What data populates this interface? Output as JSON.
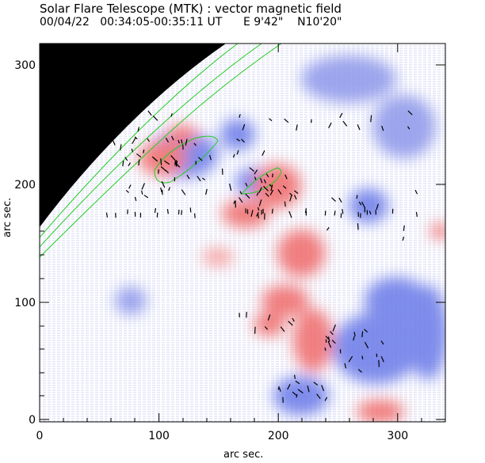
{
  "figure": {
    "title": "Solar Flare Telescope (MTK) : vector magnetic field",
    "subtitle": "00/04/22   00:34:05-00:35:11 UT      E 9'42\"    N10'20\"",
    "xlabel": "arc sec.",
    "ylabel": "arc sec.",
    "x_ticks": [
      "0",
      "100",
      "200",
      "300"
    ],
    "y_ticks": [
      "0",
      "100",
      "200",
      "300"
    ],
    "x_range": [
      0,
      340
    ],
    "y_range": [
      0,
      315
    ]
  },
  "colors": {
    "positive_field": "#f06a6a",
    "negative_field": "#6a7ae8",
    "limb_background": "#000000",
    "contour": "#22cc22",
    "vectors": "#000000"
  }
}
